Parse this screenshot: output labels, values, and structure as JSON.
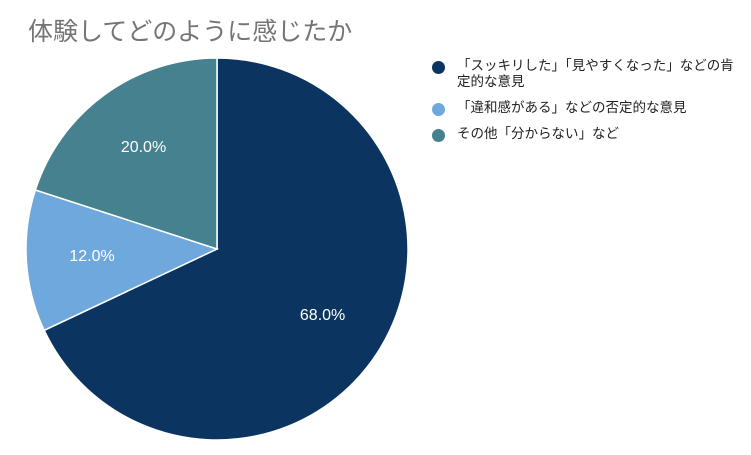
{
  "chart_data": {
    "type": "pie",
    "title": "体験してどのように感じたか",
    "unit": "%",
    "slices": [
      {
        "label": "「スッキリした」「見やすくなった」などの肯定的な意見",
        "value": 68.0,
        "display": "68.0%",
        "color": "#0b3560"
      },
      {
        "label": "「違和感がある」などの否定的な意見",
        "value": 12.0,
        "display": "12.0%",
        "color": "#6fa8dc"
      },
      {
        "label": "その他「分からない」など",
        "value": 20.0,
        "display": "20.0%",
        "color": "#45818e"
      }
    ],
    "start": "12 o'clock",
    "direction": "clockwise",
    "legend_position": "right"
  }
}
